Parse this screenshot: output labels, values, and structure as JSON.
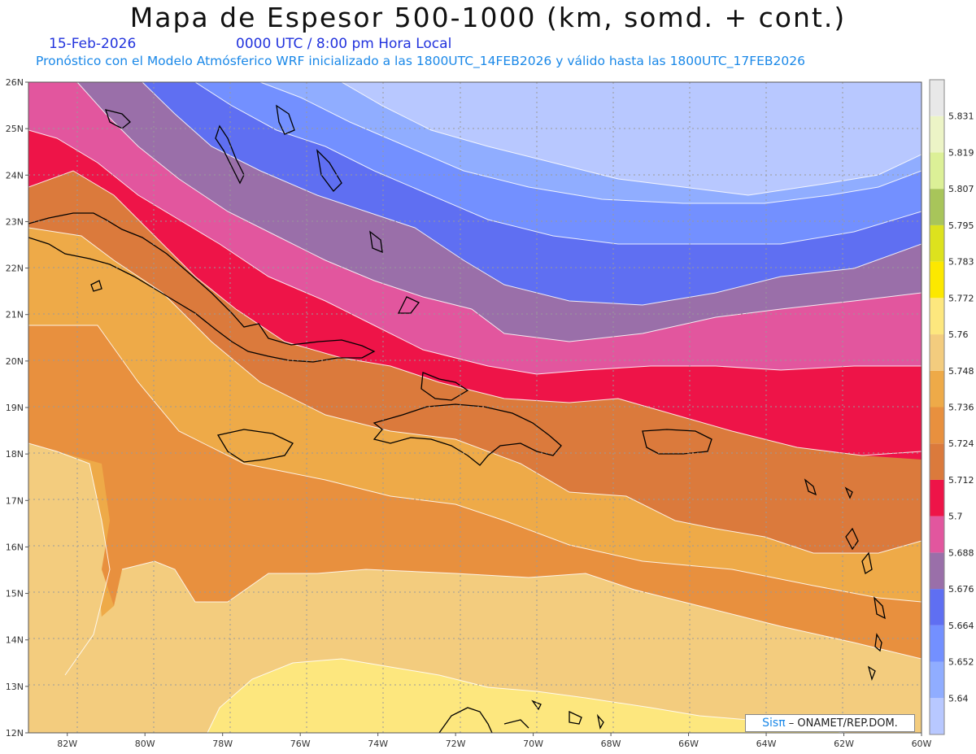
{
  "header": {
    "title": "Mapa de Espesor 500-1000 (km, somd. + cont.)",
    "date": "15-Feb-2026",
    "time": "0000 UTC / 8:00 pm Hora Local",
    "forecast": "Pronóstico con el Modelo Atmósferico WRF inicializado a las 1800UTC_14FEB2026 y válido hasta las  1800UTC_17FEB2026"
  },
  "map": {
    "lon_range": [
      -83,
      -60
    ],
    "lat_range": [
      12,
      26
    ],
    "lon_ticks": [
      "82W",
      "80W",
      "78W",
      "76W",
      "74W",
      "72W",
      "70W",
      "68W",
      "66W",
      "64W",
      "62W",
      "60W"
    ],
    "lat_ticks": [
      "12N",
      "13N",
      "14N",
      "15N",
      "16N",
      "17N",
      "18N",
      "19N",
      "20N",
      "21N",
      "22N",
      "23N",
      "24N",
      "25N",
      "26N"
    ]
  },
  "legend": {
    "labels": [
      "5.64",
      "5.652",
      "5.664",
      "5.676",
      "5.688",
      "5.7",
      "5.712",
      "5.724",
      "5.736",
      "5.748",
      "5.76",
      "5.772",
      "5.783",
      "5.795",
      "5.807",
      "5.819",
      "5.831"
    ],
    "colors": [
      "#b8c8ff",
      "#90adff",
      "#7390ff",
      "#5f6ff2",
      "#9a6fa9",
      "#e2569e",
      "#ee1448",
      "#db7a3c",
      "#e8903e",
      "#eeaa48",
      "#f3cc7e",
      "#fde77e",
      "#fce800",
      "#dde21e",
      "#a8c55a",
      "#dcf097",
      "#ecf4c6",
      "#e8e8e8"
    ]
  },
  "credit": {
    "brand": "Sisπ",
    "text": "– ONAMET/REP.DOM."
  }
}
